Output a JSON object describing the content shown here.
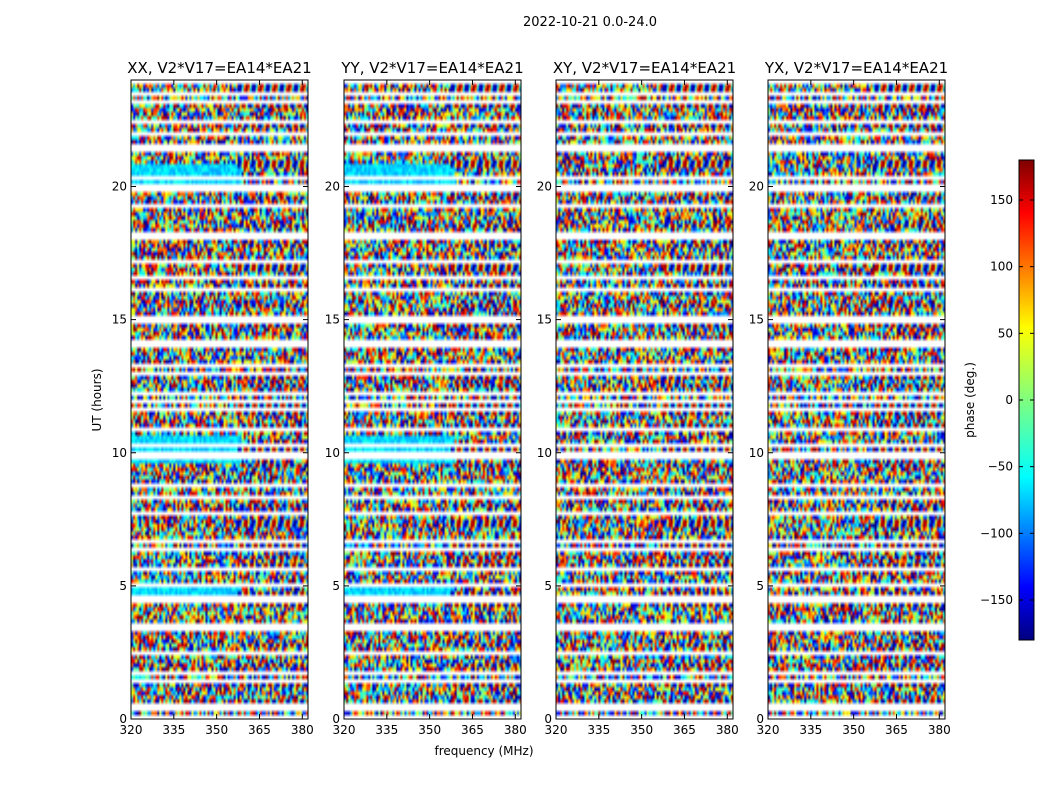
{
  "chart_data": {
    "type": "heatmap",
    "title": "2022-10-21 0.0-24.0",
    "xlabel": "frequency (MHz)",
    "ylabel": "UT (hours)",
    "xlim": [
      320,
      382
    ],
    "ylim": [
      0,
      24
    ],
    "xticks": [
      "320",
      "335",
      "350",
      "365",
      "380"
    ],
    "yticks": [
      "0",
      "5",
      "10",
      "15",
      "20"
    ],
    "panels": [
      {
        "title": "XX, V2*V17=EA14*EA21"
      },
      {
        "title": "YY, V2*V17=EA14*EA21"
      },
      {
        "title": "XY, V2*V17=EA14*EA21"
      },
      {
        "title": "YX, V2*V17=EA14*EA21"
      }
    ],
    "colorbar": {
      "label": "phase (deg.)",
      "range": [
        -180,
        180
      ],
      "ticks": [
        "150",
        "100",
        "50",
        "0",
        "−50",
        "−100",
        "−150"
      ],
      "colormap": "jet"
    },
    "grid": false
  }
}
